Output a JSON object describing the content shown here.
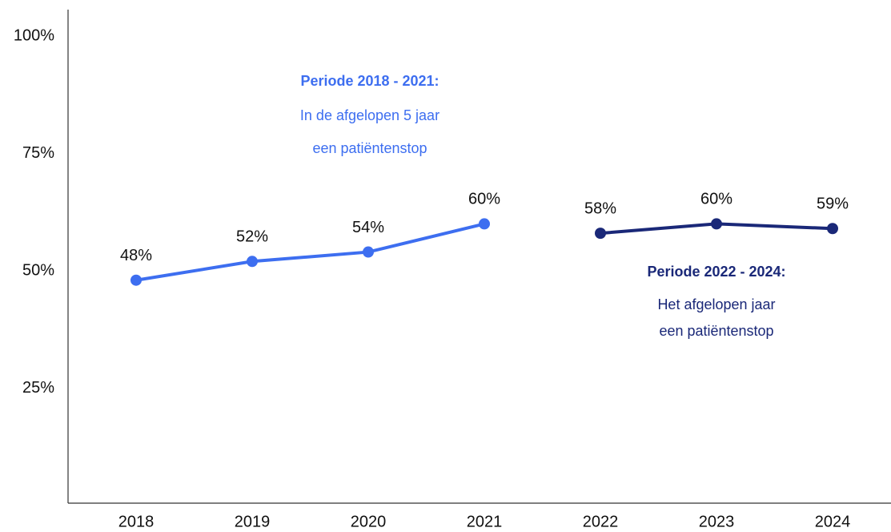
{
  "chart_data": {
    "type": "line",
    "categories": [
      "2018",
      "2019",
      "2020",
      "2021",
      "2022",
      "2023",
      "2024"
    ],
    "series": [
      {
        "name": "Periode 2018 - 2021",
        "color": "#3d6ef0",
        "values": [
          48,
          52,
          54,
          60,
          null,
          null,
          null
        ],
        "value_labels": [
          "48%",
          "52%",
          "54%",
          "60%",
          null,
          null,
          null
        ]
      },
      {
        "name": "Periode 2022 - 2024",
        "color": "#1a2878",
        "values": [
          null,
          null,
          null,
          null,
          58,
          60,
          59
        ],
        "value_labels": [
          null,
          null,
          null,
          null,
          "58%",
          "60%",
          "59%"
        ]
      }
    ],
    "ylim": [
      0,
      100
    ],
    "yticks": [
      {
        "value": 25,
        "label": "25%"
      },
      {
        "value": 50,
        "label": "50%"
      },
      {
        "value": 75,
        "label": "75%"
      },
      {
        "value": 100,
        "label": "100%"
      }
    ],
    "annotations": [
      {
        "title": "Periode 2018 - 2021:",
        "lines": [
          "In de afgelopen 5 jaar",
          "een patiëntenstop"
        ]
      },
      {
        "title": "Periode 2022 - 2024:",
        "lines": [
          "Het afgelopen jaar",
          "een patiëntenstop"
        ]
      }
    ]
  }
}
